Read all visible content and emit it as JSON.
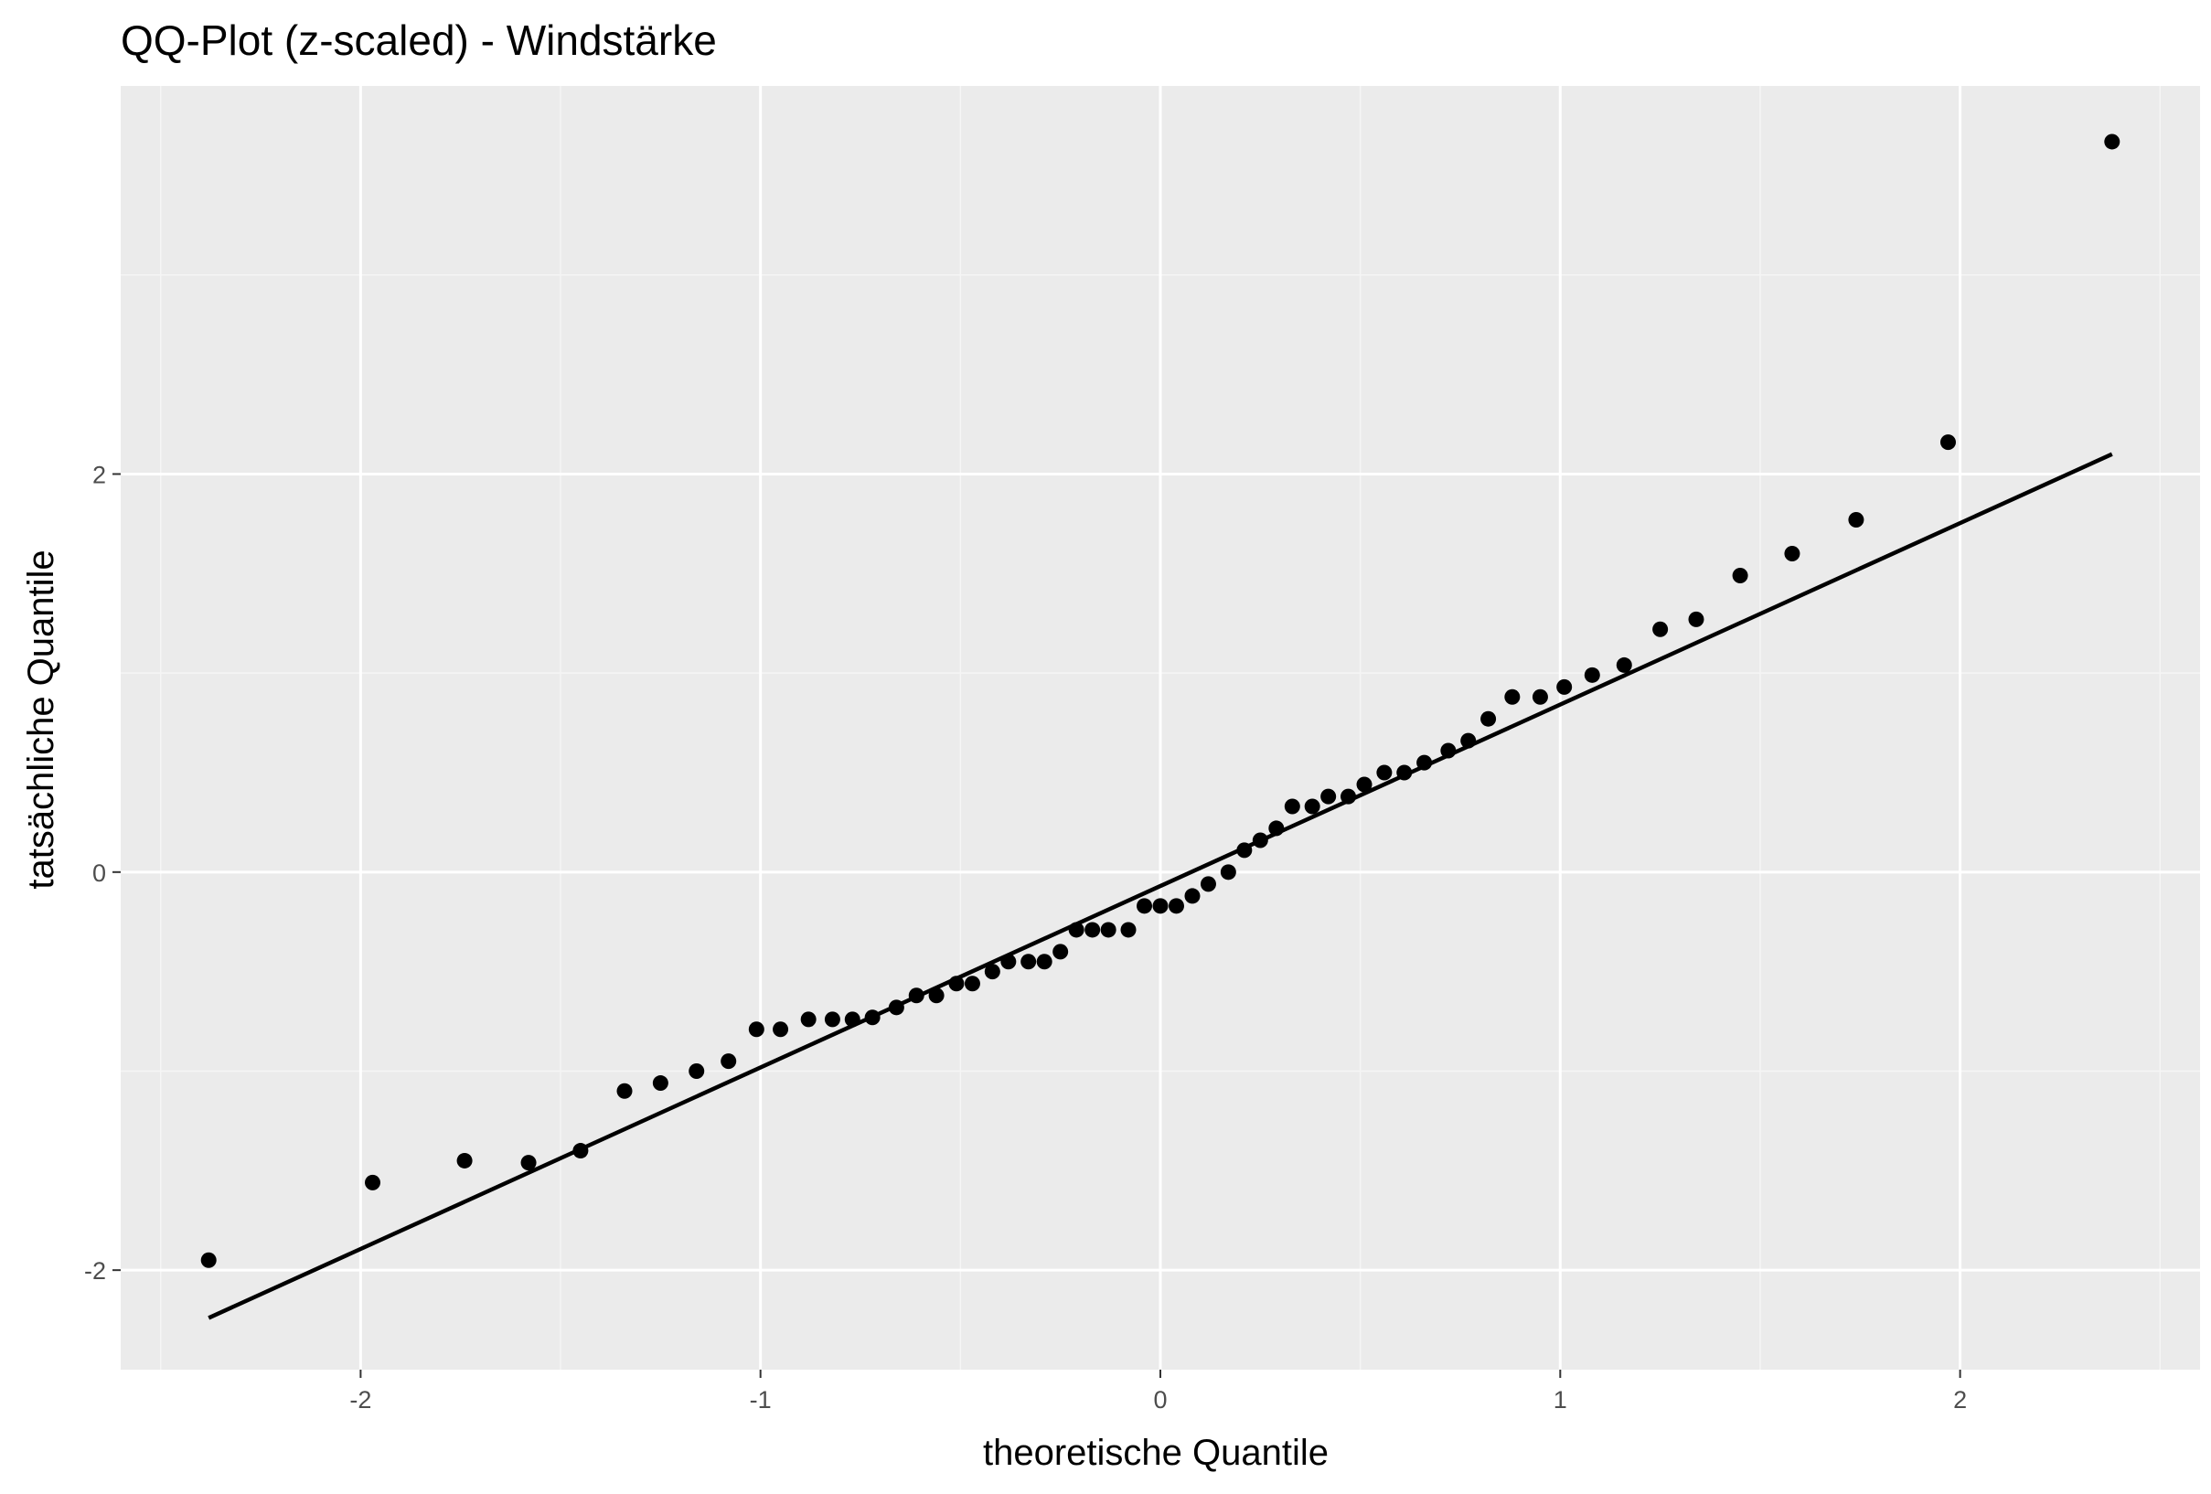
{
  "colors": {
    "panel_background": "#EBEBEB",
    "grid_major": "#FFFFFF",
    "grid_minor": "#F5F5F5",
    "points": "#000000",
    "reference_line": "#000000",
    "tick_text": "#4D4D4D",
    "text": "#000000"
  },
  "chart_data": {
    "type": "scatter",
    "title": "QQ-Plot (z-scaled) - Windstärke",
    "xlabel": "theoretische Quantile",
    "ylabel": "tatsächliche Quantile",
    "xlim": [
      -2.6,
      2.6
    ],
    "ylim": [
      -2.5,
      3.95
    ],
    "x_ticks": [
      -2,
      -1,
      0,
      1,
      2
    ],
    "x_tick_labels": [
      "-2",
      "-1",
      "0",
      "1",
      "2"
    ],
    "y_ticks": [
      -2,
      0,
      2
    ],
    "y_tick_labels": [
      "-2",
      "0",
      "2"
    ],
    "grid": true,
    "legend": "none",
    "reference_line": {
      "x": [
        -2.38,
        2.38
      ],
      "y": [
        -2.24,
        2.1
      ]
    },
    "series": [
      {
        "points": [
          [
            -2.38,
            -1.95
          ],
          [
            -1.97,
            -1.56
          ],
          [
            -1.74,
            -1.45
          ],
          [
            -1.58,
            -1.46
          ],
          [
            -1.45,
            -1.4
          ],
          [
            -1.34,
            -1.1
          ],
          [
            -1.25,
            -1.06
          ],
          [
            -1.16,
            -1.0
          ],
          [
            -1.08,
            -0.95
          ],
          [
            -1.01,
            -0.79
          ],
          [
            -0.95,
            -0.79
          ],
          [
            -0.88,
            -0.74
          ],
          [
            -0.82,
            -0.74
          ],
          [
            -0.77,
            -0.74
          ],
          [
            -0.72,
            -0.73
          ],
          [
            -0.66,
            -0.68
          ],
          [
            -0.61,
            -0.62
          ],
          [
            -0.56,
            -0.62
          ],
          [
            -0.51,
            -0.56
          ],
          [
            -0.47,
            -0.56
          ],
          [
            -0.42,
            -0.5
          ],
          [
            -0.38,
            -0.45
          ],
          [
            -0.33,
            -0.45
          ],
          [
            -0.29,
            -0.45
          ],
          [
            -0.25,
            -0.4
          ],
          [
            -0.21,
            -0.29
          ],
          [
            -0.17,
            -0.29
          ],
          [
            -0.13,
            -0.29
          ],
          [
            -0.08,
            -0.29
          ],
          [
            -0.04,
            -0.17
          ],
          [
            0.0,
            -0.17
          ],
          [
            0.04,
            -0.17
          ],
          [
            0.08,
            -0.12
          ],
          [
            0.12,
            -0.06
          ],
          [
            0.17,
            0.0
          ],
          [
            0.21,
            0.11
          ],
          [
            0.25,
            0.16
          ],
          [
            0.29,
            0.22
          ],
          [
            0.33,
            0.33
          ],
          [
            0.38,
            0.33
          ],
          [
            0.42,
            0.38
          ],
          [
            0.47,
            0.38
          ],
          [
            0.51,
            0.44
          ],
          [
            0.56,
            0.5
          ],
          [
            0.61,
            0.5
          ],
          [
            0.66,
            0.55
          ],
          [
            0.72,
            0.61
          ],
          [
            0.77,
            0.66
          ],
          [
            0.82,
            0.77
          ],
          [
            0.88,
            0.88
          ],
          [
            0.95,
            0.88
          ],
          [
            1.01,
            0.93
          ],
          [
            1.08,
            0.99
          ],
          [
            1.16,
            1.04
          ],
          [
            1.25,
            1.22
          ],
          [
            1.34,
            1.27
          ],
          [
            1.45,
            1.49
          ],
          [
            1.58,
            1.6
          ],
          [
            1.74,
            1.77
          ],
          [
            1.97,
            2.16
          ],
          [
            2.38,
            3.67
          ]
        ]
      }
    ]
  }
}
